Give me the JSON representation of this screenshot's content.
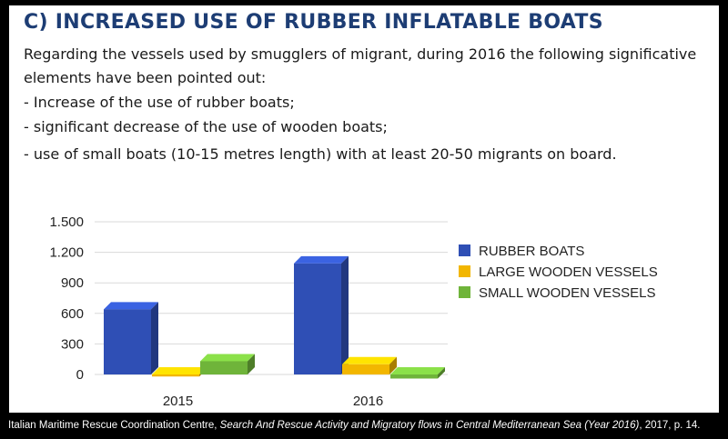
{
  "heading": "C) INCREASED USE OF RUBBER INFLATABLE BOATS",
  "paragraph": {
    "line1": "Regarding the vessels used by smugglers of migrant, during 2016 the following significative",
    "line2": "elements have been pointed out:",
    "bullets": [
      "- Increase of the use of rubber boats;",
      "- significant decrease of the use of wooden boats;",
      "- use of small boats  (10-15 metres length) with at least 20-50 migrants on board."
    ]
  },
  "chart_data": {
    "type": "bar",
    "categories": [
      "2015",
      "2016"
    ],
    "series": [
      {
        "name": "RUBBER BOATS",
        "values": [
          640,
          1090
        ],
        "color": "#2f4fb5"
      },
      {
        "name": "LARGE WOODEN VESSELS",
        "values": [
          -20,
          100
        ],
        "color": "#f2b600"
      },
      {
        "name": "SMALL WOODEN VESSELS",
        "values": [
          130,
          -40
        ],
        "color": "#6fb43a"
      }
    ],
    "yticks": [
      0,
      300,
      600,
      900,
      1200,
      1500
    ],
    "ytick_labels": [
      "0",
      "300",
      "600",
      "900",
      "1.200",
      "1.500"
    ],
    "ylim": [
      -120,
      1500
    ],
    "grid": true,
    "legend_position": "right",
    "title": "",
    "xlabel": "",
    "ylabel": ""
  },
  "citation": {
    "prefix": "Italian Maritime Rescue Coordination Centre, ",
    "title": "Search And Rescue Activity and Migratory flows in Central Mediterranean Sea (Year 2016)",
    "suffix": ", 2017, p. 14."
  }
}
